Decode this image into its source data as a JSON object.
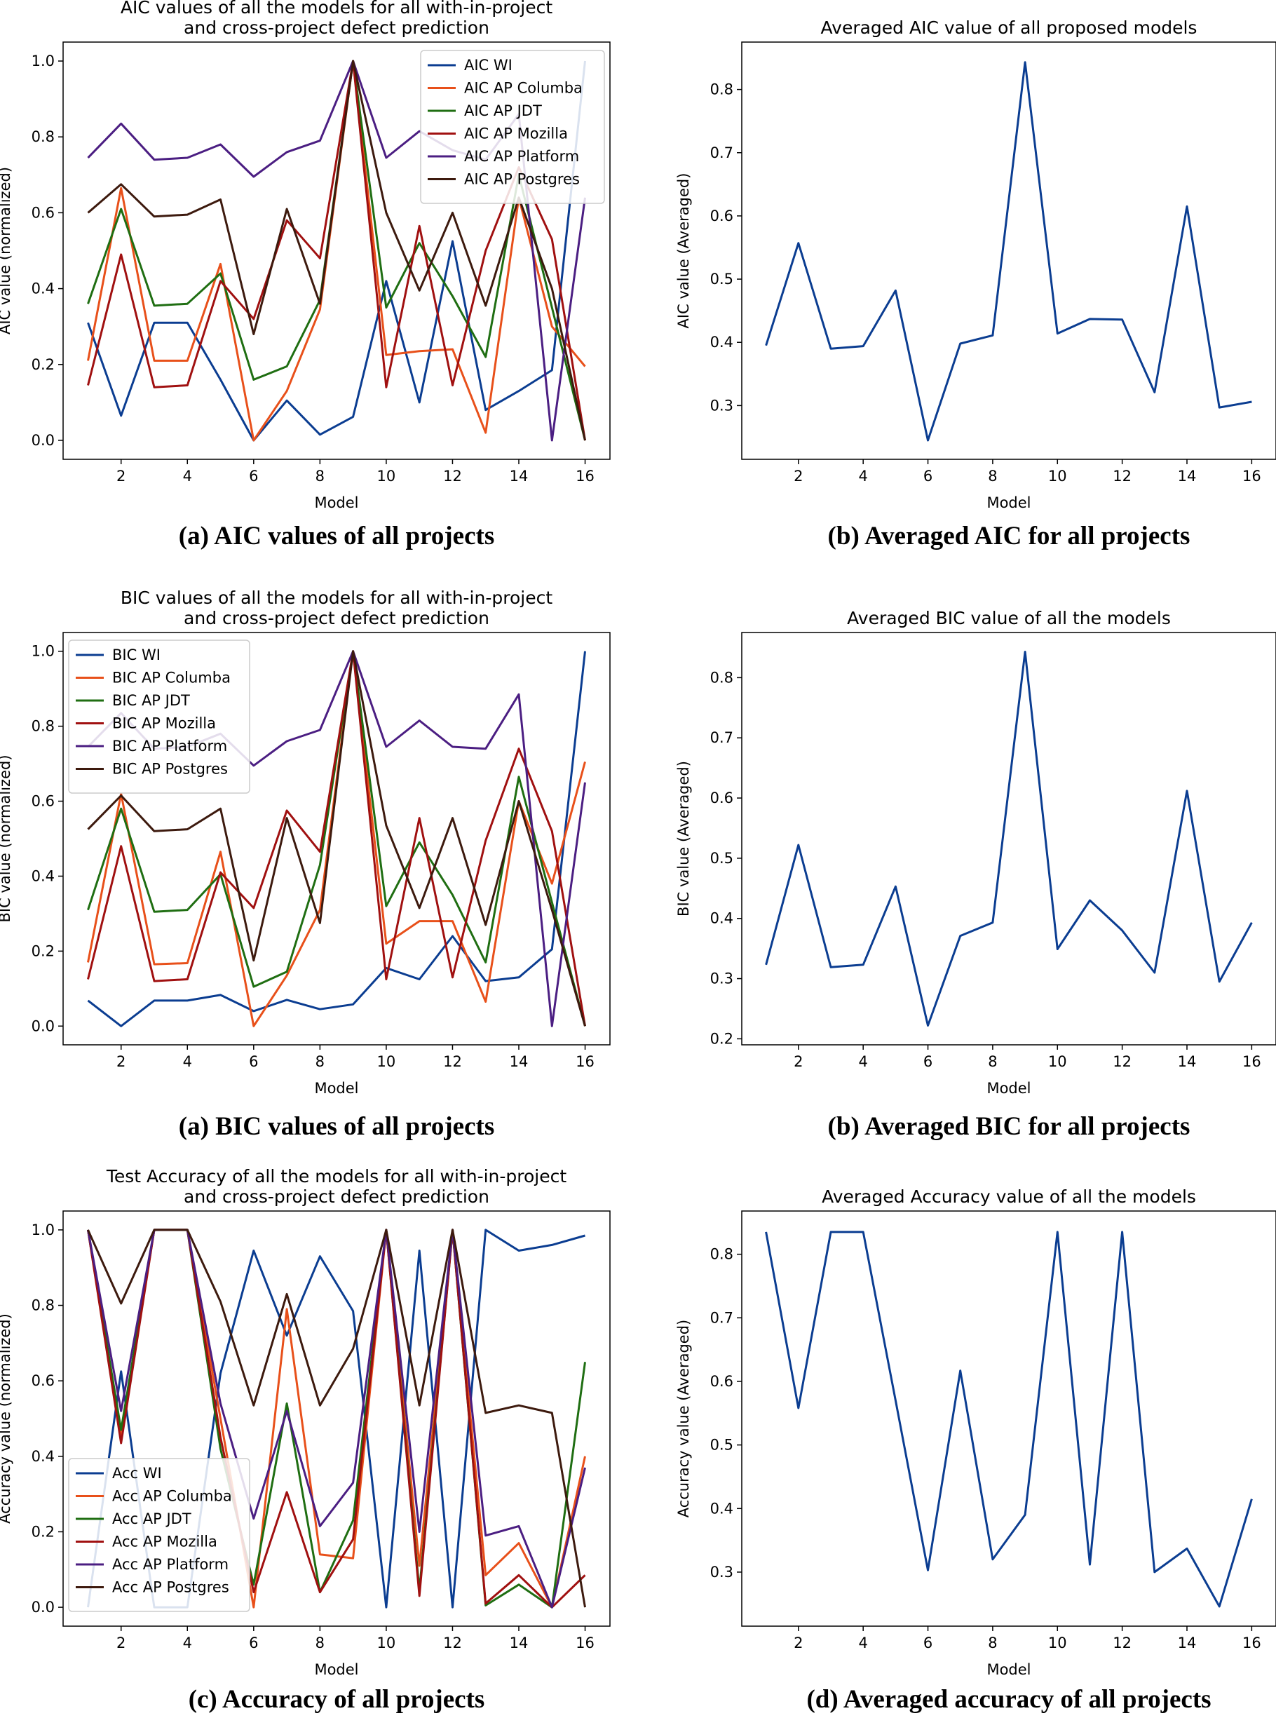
{
  "chart_data": [
    {
      "type": "line",
      "title": "AIC values of all the models for all with-in-project\nand cross-project defect prediction",
      "xlabel": "Model",
      "ylabel": "AIC value (normalized)",
      "caption": "(a) AIC values of all projects",
      "xlim": [
        0.25,
        16.75
      ],
      "ylim": [
        -0.05,
        1.05
      ],
      "xticks": [
        2,
        4,
        6,
        8,
        10,
        12,
        14,
        16
      ],
      "yticks": [
        0.0,
        0.2,
        0.4,
        0.6,
        0.8,
        1.0
      ],
      "tick_format": 1,
      "legend_position": "top-right",
      "x": [
        1,
        2,
        3,
        4,
        5,
        6,
        7,
        8,
        9,
        10,
        11,
        12,
        13,
        14,
        15,
        16
      ],
      "series": [
        {
          "name": "AIC WI",
          "color": "#0b3d91",
          "values": [
            0.31,
            0.065,
            0.31,
            0.31,
            0.16,
            0.0,
            0.105,
            0.015,
            0.062,
            0.42,
            0.1,
            0.525,
            0.08,
            0.13,
            0.185,
            1.0
          ]
        },
        {
          "name": "AIC AP Columba",
          "color": "#e8501a",
          "values": [
            0.21,
            0.665,
            0.21,
            0.21,
            0.465,
            0.0,
            0.13,
            0.345,
            1.0,
            0.225,
            0.235,
            0.24,
            0.02,
            0.64,
            0.3,
            0.195
          ]
        },
        {
          "name": "AIC AP JDT",
          "color": "#1f6e12",
          "values": [
            0.36,
            0.61,
            0.355,
            0.36,
            0.44,
            0.16,
            0.195,
            0.37,
            1.0,
            0.35,
            0.52,
            0.38,
            0.22,
            0.7,
            0.35,
            0.0
          ]
        },
        {
          "name": "AIC AP Mozilla",
          "color": "#a01010",
          "values": [
            0.145,
            0.49,
            0.14,
            0.145,
            0.42,
            0.32,
            0.58,
            0.48,
            1.0,
            0.14,
            0.565,
            0.145,
            0.5,
            0.72,
            0.53,
            0.0
          ]
        },
        {
          "name": "AIC AP Platform",
          "color": "#4b1e82",
          "values": [
            0.745,
            0.835,
            0.74,
            0.745,
            0.78,
            0.695,
            0.76,
            0.79,
            1.0,
            0.745,
            0.815,
            0.765,
            0.74,
            0.86,
            0.0,
            0.64
          ]
        },
        {
          "name": "AIC AP Postgres",
          "color": "#3d1a0e",
          "values": [
            0.6,
            0.675,
            0.59,
            0.595,
            0.635,
            0.28,
            0.61,
            0.36,
            1.0,
            0.6,
            0.395,
            0.6,
            0.355,
            0.64,
            0.4,
            0.0
          ]
        }
      ]
    },
    {
      "type": "line",
      "title": "Averaged AIC value of all  proposed models",
      "xlabel": "Model",
      "ylabel": "AIC value (Averaged)",
      "caption": "(b) Averaged AIC for all projects",
      "xlim": [
        0.25,
        16.75
      ],
      "ylim": [
        0.215,
        0.875
      ],
      "xticks": [
        2,
        4,
        6,
        8,
        10,
        12,
        14,
        16
      ],
      "yticks": [
        0.3,
        0.4,
        0.5,
        0.6,
        0.7,
        0.8
      ],
      "tick_format": 1,
      "x": [
        1,
        2,
        3,
        4,
        5,
        6,
        7,
        8,
        9,
        10,
        11,
        12,
        13,
        14,
        15,
        16
      ],
      "series": [
        {
          "name": "Averaged AIC",
          "color": "#0b3d91",
          "values": [
            0.395,
            0.557,
            0.39,
            0.394,
            0.482,
            0.245,
            0.398,
            0.411,
            0.843,
            0.414,
            0.437,
            0.436,
            0.321,
            0.615,
            0.297,
            0.306
          ]
        }
      ]
    },
    {
      "type": "line",
      "title": "BIC values of all the models for all with-in-project\nand cross-project defect prediction",
      "xlabel": "Model",
      "ylabel": "BIC value (normalized)",
      "caption": "(a) BIC values of all projects",
      "xlim": [
        0.25,
        16.75
      ],
      "ylim": [
        -0.05,
        1.05
      ],
      "xticks": [
        2,
        4,
        6,
        8,
        10,
        12,
        14,
        16
      ],
      "yticks": [
        0.0,
        0.2,
        0.4,
        0.6,
        0.8,
        1.0
      ],
      "tick_format": 1,
      "legend_position": "top-left",
      "x": [
        1,
        2,
        3,
        4,
        5,
        6,
        7,
        8,
        9,
        10,
        11,
        12,
        13,
        14,
        15,
        16
      ],
      "series": [
        {
          "name": "BIC WI",
          "color": "#0b3d91",
          "values": [
            0.068,
            0.0,
            0.068,
            0.068,
            0.083,
            0.04,
            0.07,
            0.045,
            0.058,
            0.155,
            0.125,
            0.24,
            0.12,
            0.13,
            0.205,
            1.0
          ]
        },
        {
          "name": "BIC AP Columba",
          "color": "#e8501a",
          "values": [
            0.17,
            0.62,
            0.165,
            0.168,
            0.465,
            0.0,
            0.135,
            0.31,
            1.0,
            0.22,
            0.28,
            0.28,
            0.065,
            0.6,
            0.38,
            0.705
          ]
        },
        {
          "name": "BIC AP JDT",
          "color": "#1f6e12",
          "values": [
            0.31,
            0.58,
            0.305,
            0.31,
            0.405,
            0.105,
            0.145,
            0.43,
            1.0,
            0.32,
            0.49,
            0.35,
            0.17,
            0.665,
            0.33,
            0.0
          ]
        },
        {
          "name": "BIC AP Mozilla",
          "color": "#a01010",
          "values": [
            0.125,
            0.48,
            0.12,
            0.125,
            0.41,
            0.315,
            0.575,
            0.465,
            1.0,
            0.125,
            0.555,
            0.13,
            0.495,
            0.74,
            0.52,
            0.0
          ]
        },
        {
          "name": "BIC AP Platform",
          "color": "#4b1e82",
          "values": [
            0.745,
            0.835,
            0.74,
            0.745,
            0.78,
            0.695,
            0.76,
            0.79,
            1.0,
            0.745,
            0.815,
            0.745,
            0.74,
            0.885,
            0.0,
            0.65
          ]
        },
        {
          "name": "BIC AP Postgres",
          "color": "#3d1a0e",
          "values": [
            0.525,
            0.615,
            0.52,
            0.525,
            0.58,
            0.175,
            0.555,
            0.275,
            1.0,
            0.535,
            0.315,
            0.555,
            0.27,
            0.6,
            0.31,
            0.0
          ]
        }
      ]
    },
    {
      "type": "line",
      "title": "Averaged BIC value of all the models",
      "xlabel": "Model",
      "ylabel": "BIC value (Averaged)",
      "caption": "(b) Averaged BIC for all projects",
      "xlim": [
        0.25,
        16.75
      ],
      "ylim": [
        0.19,
        0.875
      ],
      "xticks": [
        2,
        4,
        6,
        8,
        10,
        12,
        14,
        16
      ],
      "yticks": [
        0.2,
        0.3,
        0.4,
        0.5,
        0.6,
        0.7,
        0.8
      ],
      "tick_format": 1,
      "x": [
        1,
        2,
        3,
        4,
        5,
        6,
        7,
        8,
        9,
        10,
        11,
        12,
        13,
        14,
        15,
        16
      ],
      "series": [
        {
          "name": "Averaged BIC",
          "color": "#0b3d91",
          "values": [
            0.323,
            0.522,
            0.319,
            0.323,
            0.453,
            0.222,
            0.371,
            0.393,
            0.843,
            0.349,
            0.43,
            0.38,
            0.31,
            0.612,
            0.295,
            0.393
          ]
        }
      ]
    },
    {
      "type": "line",
      "title": "Test Accuracy of all the models for all with-in-project\nand cross-project defect prediction",
      "xlabel": "Model",
      "ylabel": "Accuracy value (normalized)",
      "caption": "(c) Accuracy of all projects",
      "xlim": [
        0.25,
        16.75
      ],
      "ylim": [
        -0.05,
        1.05
      ],
      "xticks": [
        2,
        4,
        6,
        8,
        10,
        12,
        14,
        16
      ],
      "yticks": [
        0.0,
        0.2,
        0.4,
        0.6,
        0.8,
        1.0
      ],
      "tick_format": 1,
      "legend_position": "bottom-left",
      "x": [
        1,
        2,
        3,
        4,
        5,
        6,
        7,
        8,
        9,
        10,
        11,
        12,
        13,
        14,
        15,
        16
      ],
      "series": [
        {
          "name": "Acc WI",
          "color": "#0b3d91",
          "values": [
            0.0,
            0.625,
            0.0,
            0.0,
            0.62,
            0.945,
            0.72,
            0.93,
            0.785,
            0.0,
            0.945,
            0.0,
            1.0,
            0.945,
            0.96,
            0.985
          ]
        },
        {
          "name": "Acc AP Columba",
          "color": "#e8501a",
          "values": [
            1.0,
            0.45,
            1.0,
            1.0,
            0.5,
            0.0,
            0.79,
            0.14,
            0.13,
            1.0,
            0.11,
            1.0,
            0.085,
            0.17,
            0.0,
            0.4
          ]
        },
        {
          "name": "Acc AP JDT",
          "color": "#1f6e12",
          "values": [
            1.0,
            0.47,
            1.0,
            1.0,
            0.42,
            0.06,
            0.54,
            0.04,
            0.23,
            1.0,
            0.045,
            1.0,
            0.005,
            0.06,
            0.0,
            0.65
          ]
        },
        {
          "name": "Acc AP Mozilla",
          "color": "#a01010",
          "values": [
            1.0,
            0.435,
            1.0,
            1.0,
            0.45,
            0.04,
            0.305,
            0.04,
            0.18,
            1.0,
            0.03,
            1.0,
            0.01,
            0.085,
            0.0,
            0.085
          ]
        },
        {
          "name": "Acc AP Platform",
          "color": "#4b1e82",
          "values": [
            1.0,
            0.52,
            1.0,
            1.0,
            0.54,
            0.235,
            0.52,
            0.215,
            0.33,
            1.0,
            0.2,
            1.0,
            0.19,
            0.215,
            0.0,
            0.37
          ]
        },
        {
          "name": "Acc AP Postgres",
          "color": "#3d1a0e",
          "values": [
            1.0,
            0.805,
            1.0,
            1.0,
            0.81,
            0.535,
            0.83,
            0.535,
            0.685,
            1.0,
            0.535,
            1.0,
            0.515,
            0.535,
            0.515,
            0.0
          ]
        }
      ]
    },
    {
      "type": "line",
      "title": "Averaged Accuracy value of all the models",
      "xlabel": "Model",
      "ylabel": "Accuracy value (Averaged)",
      "caption": "(d) Averaged accuracy of all projects",
      "xlim": [
        0.25,
        16.75
      ],
      "ylim": [
        0.215,
        0.868
      ],
      "xticks": [
        2,
        4,
        6,
        8,
        10,
        12,
        14,
        16
      ],
      "yticks": [
        0.3,
        0.4,
        0.5,
        0.6,
        0.7,
        0.8
      ],
      "tick_format": 1,
      "x": [
        1,
        2,
        3,
        4,
        5,
        6,
        7,
        8,
        9,
        10,
        11,
        12,
        13,
        14,
        15,
        16
      ],
      "series": [
        {
          "name": "Averaged Accuracy",
          "color": "#0b3d91",
          "values": [
            0.835,
            0.558,
            0.835,
            0.835,
            0.57,
            0.303,
            0.617,
            0.32,
            0.39,
            0.835,
            0.312,
            0.835,
            0.3,
            0.337,
            0.246,
            0.415
          ]
        }
      ]
    }
  ]
}
